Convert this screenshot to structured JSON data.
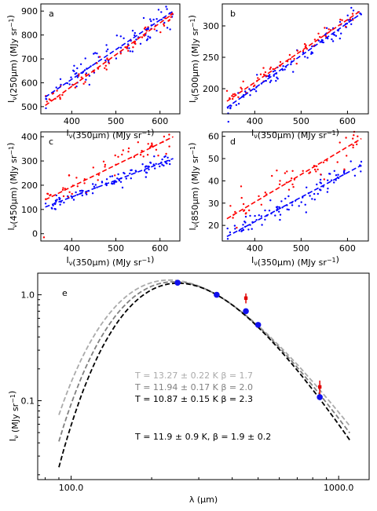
{
  "chart_data": [
    {
      "id": "a",
      "type": "scatter",
      "panel_label": "a",
      "xlabel": "I_ν(350μm) (MJy sr^−1)",
      "ylabel": "I_ν(250μm) (MJy sr^−1)",
      "xlim": [
        330,
        645
      ],
      "ylim": [
        470,
        930
      ],
      "xticks": [
        400,
        500,
        600
      ],
      "yticks": [
        500,
        600,
        700,
        800,
        900
      ],
      "series": [
        {
          "color": "#0000ff",
          "scatter": {
            "n": 90,
            "noise": 30
          },
          "fit": {
            "x": [
              340,
              630
            ],
            "y": [
              540,
              900
            ]
          }
        },
        {
          "color": "#ff0000",
          "scatter": {
            "n": 55,
            "noise": 18
          },
          "fit": {
            "x": [
              340,
              630
            ],
            "y": [
              505,
              890
            ]
          }
        }
      ]
    },
    {
      "id": "b",
      "type": "scatter",
      "panel_label": "b",
      "xlabel": "I_ν(350μm) (MJy sr^−1)",
      "ylabel": "I_ν(500μm) (MJy sr^−1)",
      "xlim": [
        330,
        645
      ],
      "ylim": [
        160,
        335
      ],
      "xticks": [
        400,
        500,
        600
      ],
      "yticks": [
        200,
        250,
        300
      ],
      "series": [
        {
          "color": "#0000ff",
          "scatter": {
            "n": 90,
            "noise": 7
          },
          "fit": {
            "x": [
              340,
              630
            ],
            "y": [
              170,
              320
            ]
          }
        },
        {
          "color": "#ff0000",
          "scatter": {
            "n": 55,
            "noise": 6
          },
          "fit": {
            "x": [
              340,
              630
            ],
            "y": [
              180,
              325
            ]
          }
        }
      ]
    },
    {
      "id": "c",
      "type": "scatter",
      "panel_label": "c",
      "xlabel": "I_ν(350μm) (MJy sr^−1)",
      "ylabel": "I_ν(450μm) (MJy sr^−1)",
      "xlim": [
        330,
        645
      ],
      "ylim": [
        -30,
        420
      ],
      "xticks": [
        400,
        500,
        600
      ],
      "yticks": [
        0,
        100,
        200,
        300,
        400
      ],
      "series": [
        {
          "color": "#0000ff",
          "scatter": {
            "n": 95,
            "noise": 14
          },
          "fit": {
            "x": [
              340,
              630
            ],
            "y": [
              110,
              310
            ]
          }
        },
        {
          "color": "#ff0000",
          "scatter": {
            "n": 55,
            "noise": 22
          },
          "fit": {
            "x": [
              340,
              630
            ],
            "y": [
              140,
              400
            ]
          }
        }
      ],
      "outliers": [
        {
          "x": 337,
          "y": -15,
          "color": "#ff0000"
        }
      ]
    },
    {
      "id": "d",
      "type": "scatter",
      "panel_label": "d",
      "xlabel": "I_ν(350μm) (MJy sr^−1)",
      "ylabel": "I_ν(850μm) (MJy sr^−1)",
      "xlim": [
        330,
        645
      ],
      "ylim": [
        13,
        62
      ],
      "xticks": [
        400,
        500,
        600
      ],
      "yticks": [
        20,
        30,
        40,
        50,
        60
      ],
      "series": [
        {
          "color": "#0000ff",
          "scatter": {
            "n": 95,
            "noise": 2.8
          },
          "fit": {
            "x": [
              340,
              630
            ],
            "y": [
              15,
              47
            ]
          }
        },
        {
          "color": "#ff0000",
          "scatter": {
            "n": 55,
            "noise": 3.5
          },
          "fit": {
            "x": [
              340,
              630
            ],
            "y": [
              23,
              59
            ]
          }
        }
      ]
    },
    {
      "id": "e",
      "type": "line",
      "panel_label": "e",
      "xlabel": "λ (μm)",
      "ylabel": "I_ν (MJy sr^−1)",
      "xscale": "log",
      "yscale": "log",
      "xlim": [
        75,
        1300
      ],
      "ylim": [
        0.018,
        1.6
      ],
      "xtick_labels": [
        {
          "v": 100,
          "label": "100.0"
        },
        {
          "v": 1000,
          "label": "1000.0"
        }
      ],
      "ytick_labels": [
        {
          "v": 1.0,
          "label": "1.0"
        },
        {
          "v": 0.1,
          "label": "0.1"
        }
      ],
      "curves": [
        {
          "color": "#aaaaaa",
          "T": 13.27,
          "beta": 1.7,
          "label": "T = 13.27 ± 0.22 K  β = 1.7"
        },
        {
          "color": "#808080",
          "T": 11.94,
          "beta": 2.0,
          "label": "T = 11.94 ± 0.17 K  β = 2.0"
        },
        {
          "color": "#000000",
          "T": 10.87,
          "beta": 2.3,
          "label": "T = 10.87 ± 0.15 K  β = 2.3"
        }
      ],
      "curve_range": [
        90,
        1100
      ],
      "blue_points": [
        {
          "x": 250,
          "y": 1.3
        },
        {
          "x": 350,
          "y": 1.0
        },
        {
          "x": 450,
          "y": 0.7
        },
        {
          "x": 500,
          "y": 0.52
        },
        {
          "x": 850,
          "y": 0.108
        }
      ],
      "red_points": [
        {
          "x": 250,
          "y": 1.32,
          "err": 0.03
        },
        {
          "x": 350,
          "y": 1.02,
          "err": 0.03
        },
        {
          "x": 450,
          "y": 0.93,
          "err": 0.1
        },
        {
          "x": 500,
          "y": 0.51,
          "err": 0.02
        },
        {
          "x": 850,
          "y": 0.135,
          "err": 0.02
        }
      ],
      "summary": "T = 11.9 ± 0.9 K,  β = 1.9 ± 0.2"
    }
  ]
}
